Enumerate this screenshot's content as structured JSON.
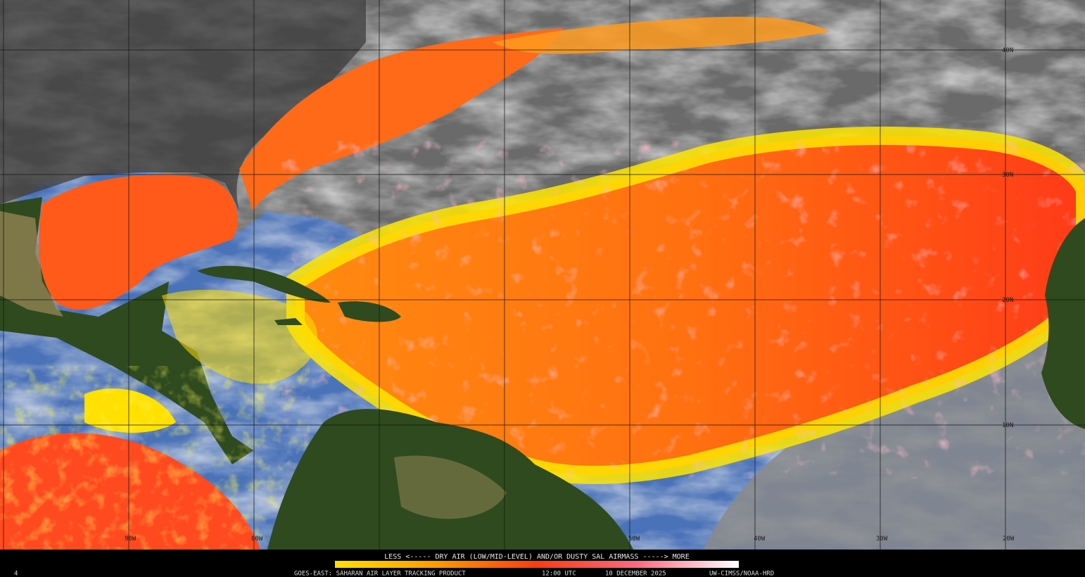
{
  "legend": {
    "caption": "LESS <----- DRY AIR (LOW/MID-LEVEL) AND/OR DUSTY SAL AIRMASS -----> MORE"
  },
  "footer": {
    "frame": "4",
    "product": "GOES-EAST: SAHARAN AIR LAYER TRACKING PRODUCT",
    "time": "12:00 UTC",
    "date": "10 DECEMBER 2025",
    "credit": "UW-CIMSS/NOAA-HRD"
  },
  "grid": {
    "latitudes": [
      "40N",
      "30N",
      "20N",
      "10N"
    ],
    "longitudes": [
      "90W",
      "80W",
      "50W",
      "40W",
      "30W",
      "20W"
    ]
  }
}
